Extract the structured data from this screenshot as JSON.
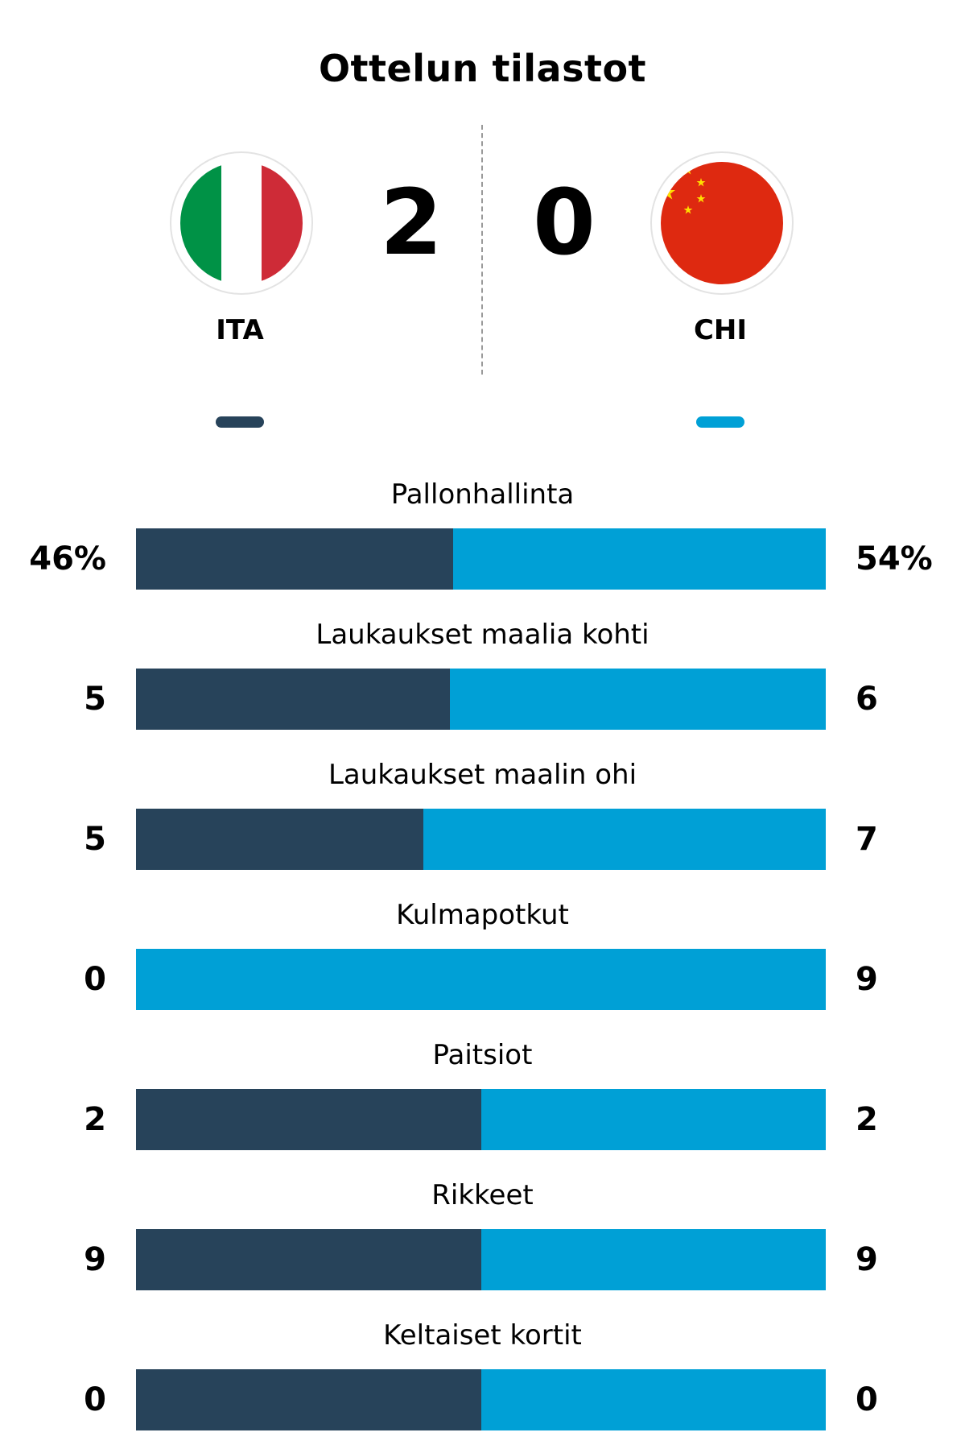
{
  "title": "Ottelun tilastot",
  "colors": {
    "home": "#27435a",
    "away": "#00a0d6"
  },
  "home": {
    "code": "ITA",
    "score": "2",
    "flag": "italy-flag-icon"
  },
  "away": {
    "code": "CHI",
    "score": "0",
    "flag": "china-flag-icon"
  },
  "stats": [
    {
      "label": "Pallonhallinta",
      "home": "46%",
      "away": "54%",
      "home_share": 0.46
    },
    {
      "label": "Laukaukset maalia kohti",
      "home": "5",
      "away": "6",
      "home_share": 0.4545
    },
    {
      "label": "Laukaukset maalin ohi",
      "home": "5",
      "away": "7",
      "home_share": 0.4167
    },
    {
      "label": "Kulmapotkut",
      "home": "0",
      "away": "9",
      "home_share": 0.0
    },
    {
      "label": "Paitsiot",
      "home": "2",
      "away": "2",
      "home_share": 0.5
    },
    {
      "label": "Rikkeet",
      "home": "9",
      "away": "9",
      "home_share": 0.5
    },
    {
      "label": "Keltaiset kortit",
      "home": "0",
      "away": "0",
      "home_share": 0.5
    }
  ]
}
